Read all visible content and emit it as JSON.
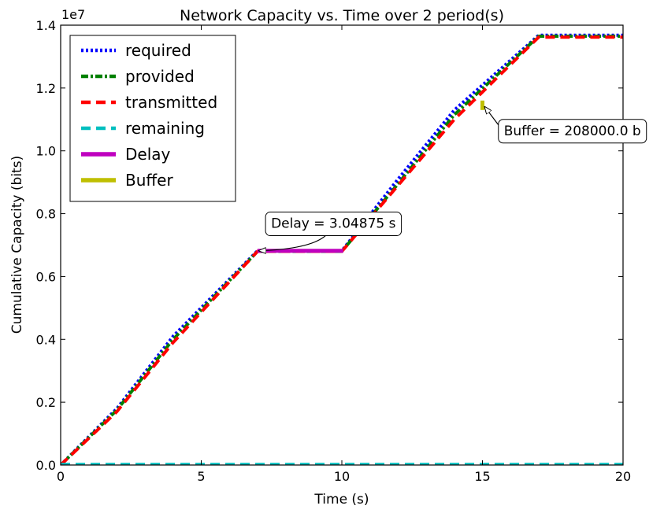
{
  "chart_data": {
    "type": "line",
    "title": "Network Capacity vs. Time over 2 period(s)",
    "xlabel": "Time (s)",
    "ylabel": "Cumulative Capacity (bits)",
    "y_offset_label": "1e7",
    "xlim": [
      0,
      20
    ],
    "ylim": [
      0,
      1.4
    ],
    "y_scale_factor": 10000000,
    "x_ticks": [
      0,
      5,
      10,
      15,
      20
    ],
    "x_tick_labels": [
      "0",
      "5",
      "10",
      "15",
      "20"
    ],
    "y_ticks": [
      0.0,
      0.2,
      0.4,
      0.6,
      0.8,
      1.0,
      1.2,
      1.4
    ],
    "y_tick_labels": [
      "0.0",
      "0.2",
      "0.4",
      "0.6",
      "0.8",
      "1.0",
      "1.2",
      "1.4"
    ],
    "grid": false,
    "legend_position": "top-left",
    "series": [
      {
        "name": "required",
        "color": "#0000ff",
        "style": "dotted",
        "x": [
          0,
          2,
          4,
          7,
          10,
          12,
          14,
          17,
          20
        ],
        "y": [
          0,
          0.18,
          0.41,
          0.682,
          0.682,
          0.91,
          1.13,
          1.368,
          1.368
        ]
      },
      {
        "name": "provided",
        "color": "#008000",
        "style": "dashdot",
        "x": [
          0,
          2,
          4,
          7,
          10,
          12,
          14,
          17,
          20
        ],
        "y": [
          0,
          0.175,
          0.4,
          0.68,
          0.68,
          0.895,
          1.115,
          1.365,
          1.365
        ]
      },
      {
        "name": "transmitted",
        "color": "#ff0000",
        "style": "dashed",
        "x": [
          0,
          2,
          4,
          7,
          10,
          12,
          14,
          17,
          20
        ],
        "y": [
          0,
          0.17,
          0.39,
          0.68,
          0.68,
          0.89,
          1.1,
          1.362,
          1.362
        ]
      },
      {
        "name": "remaining",
        "color": "#00bfbf",
        "style": "dashed",
        "x": [
          0,
          20
        ],
        "y": [
          0.002,
          0.002
        ]
      },
      {
        "name": "Delay",
        "color": "#bf00bf",
        "style": "solid",
        "x": [
          7,
          10.05
        ],
        "y": [
          0.682,
          0.682
        ]
      },
      {
        "name": "Buffer",
        "color": "#bfbf00",
        "style": "solid",
        "x": [
          15,
          15
        ],
        "y": [
          1.13,
          1.16
        ]
      }
    ],
    "annotations": [
      {
        "text": "Delay = 3.04875 s",
        "x": 7,
        "y": 0.682,
        "text_x": 9.7,
        "text_y": 0.77
      },
      {
        "text": "Buffer = 208000.0 b",
        "x": 15,
        "y": 1.15,
        "text_x": 18.2,
        "text_y": 1.065
      }
    ]
  }
}
